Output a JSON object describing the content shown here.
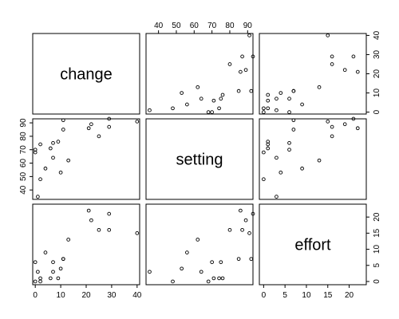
{
  "chart_data": {
    "type": "scatter",
    "chart_kind": "scatterplot-matrix",
    "grid": false,
    "variables": [
      {
        "key": "change",
        "label": "change",
        "range": [
          -1,
          41
        ],
        "ticks": [
          0,
          10,
          20,
          30,
          40
        ]
      },
      {
        "key": "setting",
        "label": "setting",
        "range": [
          33,
          93
        ],
        "ticks": [
          40,
          50,
          60,
          70,
          80,
          90
        ]
      },
      {
        "key": "effort",
        "label": "effort",
        "range": [
          -1,
          24
        ],
        "ticks": [
          0,
          5,
          10,
          15,
          20
        ]
      }
    ],
    "axis_sides": {
      "top": [
        "",
        "setting",
        ""
      ],
      "bottom": [
        "change",
        "",
        "effort"
      ],
      "left": [
        "",
        "setting",
        ""
      ],
      "right": [
        "change",
        "",
        "effort"
      ]
    },
    "observations": [
      {
        "change": 1,
        "setting": 35,
        "effort": 3
      },
      {
        "change": 10,
        "setting": 53,
        "effort": 4
      },
      {
        "change": 29,
        "setting": 93,
        "effort": 21
      },
      {
        "change": 40,
        "setting": 91,
        "effort": 15
      },
      {
        "change": 21,
        "setting": 86,
        "effort": 22
      },
      {
        "change": 0,
        "setting": 68,
        "effort": 0
      },
      {
        "change": 13,
        "setting": 62,
        "effort": 13
      },
      {
        "change": 4,
        "setting": 56,
        "effort": 9
      },
      {
        "change": 22,
        "setting": 89,
        "effort": 19
      },
      {
        "change": 25,
        "setting": 80,
        "effort": 16
      },
      {
        "change": 29,
        "setting": 87,
        "effort": 16
      },
      {
        "change": 7,
        "setting": 75,
        "effort": 6
      },
      {
        "change": 11,
        "setting": 85,
        "effort": 7
      },
      {
        "change": 2,
        "setting": 74,
        "effort": 1
      },
      {
        "change": 6,
        "setting": 71,
        "effort": 1
      },
      {
        "change": 0,
        "setting": 70,
        "effort": 6
      },
      {
        "change": 9,
        "setting": 76,
        "effort": 1
      },
      {
        "change": 11,
        "setting": 92,
        "effort": 7
      },
      {
        "change": 2,
        "setting": 48,
        "effort": 0
      },
      {
        "change": 7,
        "setting": 64,
        "effort": 3
      }
    ]
  }
}
